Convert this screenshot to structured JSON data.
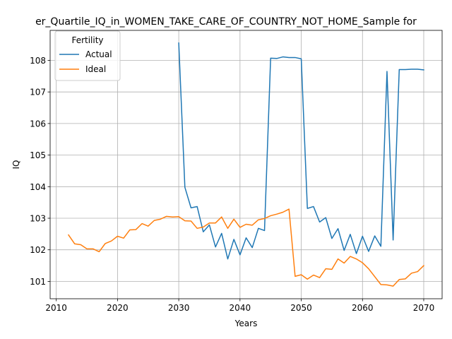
{
  "chart_data": {
    "type": "line",
    "title": "er_Quartile_IQ_in_WOMEN_TAKE_CARE_OF_COUNTRY_NOT_HOME_Sample for",
    "xlabel": "Years",
    "ylabel": "IQ",
    "xlim": [
      2009,
      2073
    ],
    "ylim": [
      100.45,
      108.95
    ],
    "xticks": [
      2010,
      2020,
      2030,
      2040,
      2050,
      2060,
      2070
    ],
    "yticks": [
      101,
      102,
      103,
      104,
      105,
      106,
      107,
      108
    ],
    "grid": true,
    "legend": {
      "title": "Fertility",
      "position": "top-left"
    },
    "series": [
      {
        "name": "Actual",
        "color": "#1f77b4",
        "x": [
          2030,
          2031,
          2032,
          2033,
          2034,
          2035,
          2036,
          2037,
          2038,
          2039,
          2040,
          2041,
          2042,
          2043,
          2044,
          2045,
          2046,
          2047,
          2048,
          2049,
          2050,
          2051,
          2052,
          2053,
          2054,
          2055,
          2056,
          2057,
          2058,
          2059,
          2060,
          2061,
          2062,
          2063,
          2064,
          2065,
          2066,
          2067,
          2068,
          2069,
          2070
        ],
        "values": [
          108.55,
          103.98,
          103.33,
          103.37,
          102.57,
          102.79,
          102.09,
          102.52,
          101.71,
          102.33,
          101.84,
          102.38,
          102.07,
          102.68,
          102.61,
          108.07,
          108.06,
          108.11,
          108.09,
          108.09,
          108.05,
          103.31,
          103.37,
          102.88,
          103.02,
          102.36,
          102.67,
          101.98,
          102.49,
          101.88,
          102.43,
          101.95,
          102.44,
          102.11,
          107.65,
          102.31,
          107.71,
          107.71,
          107.72,
          107.72,
          107.7
        ]
      },
      {
        "name": "Ideal",
        "color": "#ff7f0e",
        "x": [
          2012,
          2013,
          2014,
          2015,
          2016,
          2017,
          2018,
          2019,
          2020,
          2021,
          2022,
          2023,
          2024,
          2025,
          2026,
          2027,
          2028,
          2029,
          2030,
          2031,
          2032,
          2033,
          2034,
          2035,
          2036,
          2037,
          2038,
          2039,
          2040,
          2041,
          2042,
          2043,
          2044,
          2045,
          2046,
          2047,
          2048,
          2049,
          2050,
          2051,
          2052,
          2053,
          2054,
          2055,
          2056,
          2057,
          2058,
          2059,
          2060,
          2061,
          2062,
          2063,
          2064,
          2065,
          2066,
          2067,
          2068,
          2069,
          2070
        ],
        "values": [
          102.47,
          102.19,
          102.16,
          102.03,
          102.03,
          101.94,
          102.2,
          102.28,
          102.43,
          102.37,
          102.63,
          102.64,
          102.83,
          102.75,
          102.93,
          102.97,
          103.06,
          103.04,
          103.05,
          102.92,
          102.91,
          102.68,
          102.72,
          102.85,
          102.85,
          103.04,
          102.68,
          102.97,
          102.71,
          102.81,
          102.78,
          102.95,
          102.99,
          103.08,
          103.13,
          103.19,
          103.29,
          101.16,
          101.21,
          101.07,
          101.2,
          101.12,
          101.4,
          101.38,
          101.71,
          101.58,
          101.79,
          101.71,
          101.59,
          101.4,
          101.15,
          100.9,
          100.89,
          100.85,
          101.06,
          101.08,
          101.26,
          101.31,
          101.5
        ]
      }
    ]
  }
}
